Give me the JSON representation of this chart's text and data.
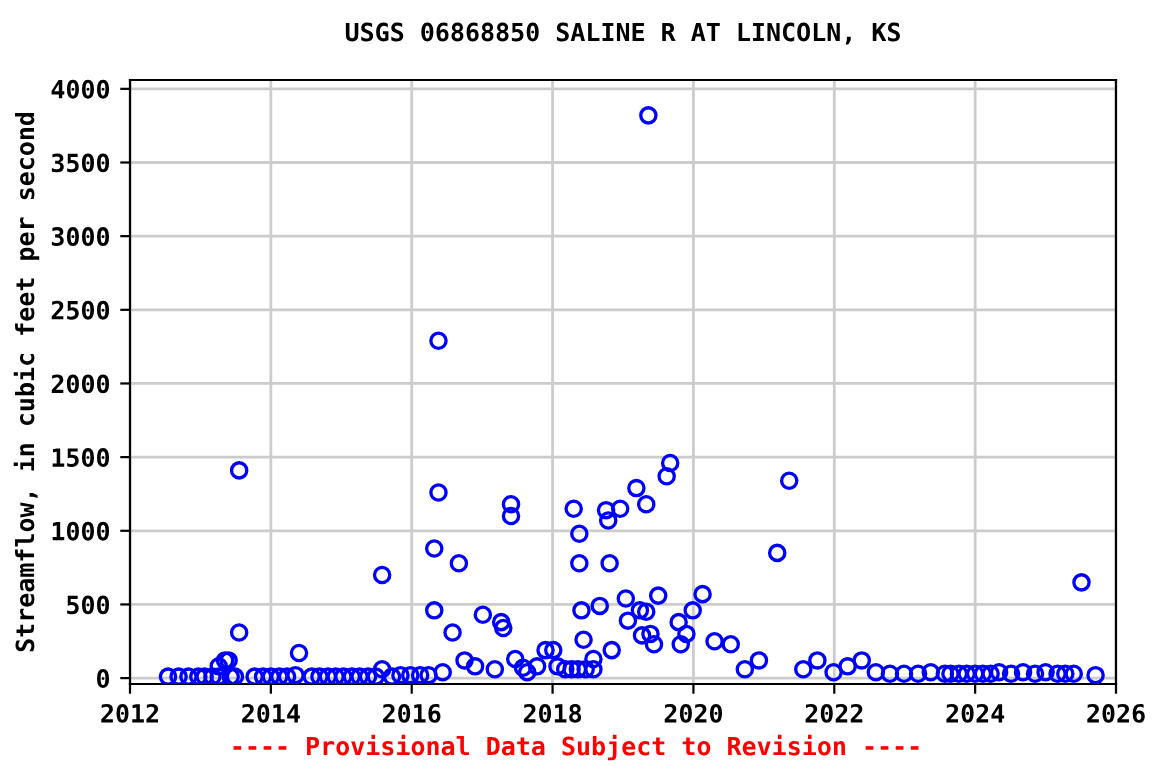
{
  "chart_data": {
    "type": "scatter",
    "title": "USGS 06868850 SALINE R AT LINCOLN, KS",
    "ylabel": "Streamflow, in cubic feet per second",
    "annotations": [
      "---- Provisional Data Subject to Revision ----"
    ],
    "series": [
      {
        "color": "#0000ff",
        "x": [
          2012.54,
          2012.69,
          2012.83,
          2012.97,
          2013.06,
          2013.17,
          2013.26,
          2013.35,
          2013.43,
          2013.49,
          2013.26,
          2013.4,
          2013.55,
          2013.55,
          2013.77,
          2013.89,
          2014.0,
          2014.12,
          2014.23,
          2014.35,
          2014.4,
          2014.58,
          2014.69,
          2014.81,
          2014.92,
          2015.03,
          2015.15,
          2015.26,
          2015.38,
          2015.49,
          2015.58,
          2015.58,
          2015.72,
          2015.84,
          2015.98,
          2016.12,
          2016.24,
          2016.32,
          2016.32,
          2016.38,
          2016.38,
          2016.44,
          2016.58,
          2016.67,
          2016.75,
          2016.9,
          2017.01,
          2017.18,
          2017.27,
          2017.3,
          2017.41,
          2017.41,
          2017.47,
          2017.58,
          2017.64,
          2017.78,
          2017.9,
          2018.01,
          2018.07,
          2018.18,
          2018.27,
          2018.36,
          2018.47,
          2018.58,
          2018.3,
          2018.38,
          2018.38,
          2018.41,
          2018.44,
          2018.58,
          2018.67,
          2018.84,
          2018.76,
          2018.79,
          2018.81,
          2018.96,
          2019.04,
          2019.07,
          2019.19,
          2019.24,
          2019.33,
          2019.33,
          2019.27,
          2019.39,
          2019.44,
          2019.36,
          2019.5,
          2019.62,
          2019.67,
          2019.79,
          2019.82,
          2019.9,
          2019.99,
          2020.13,
          2020.3,
          2020.53,
          2020.73,
          2020.93,
          2021.19,
          2021.36,
          2021.56,
          2021.76,
          2021.99,
          2022.19,
          2022.39,
          2022.59,
          2022.79,
          2022.99,
          2023.19,
          2023.37,
          2023.57,
          2023.65,
          2023.77,
          2023.88,
          2024.0,
          2024.11,
          2024.22,
          2024.34,
          2024.51,
          2024.68,
          2024.85,
          2025.0,
          2025.17,
          2025.28,
          2025.4,
          2025.51,
          2025.71
        ],
        "values": [
          10,
          10,
          10,
          10,
          10,
          10,
          80,
          120,
          10,
          10,
          10,
          120,
          310,
          1410,
          10,
          10,
          10,
          10,
          10,
          20,
          170,
          10,
          10,
          10,
          10,
          10,
          10,
          10,
          10,
          10,
          700,
          60,
          10,
          20,
          20,
          20,
          20,
          880,
          460,
          2290,
          1260,
          40,
          310,
          780,
          120,
          80,
          430,
          60,
          380,
          340,
          1180,
          1100,
          130,
          70,
          40,
          80,
          190,
          190,
          80,
          60,
          60,
          60,
          60,
          60,
          1150,
          980,
          780,
          460,
          260,
          130,
          490,
          190,
          1140,
          1070,
          780,
          1150,
          540,
          390,
          1290,
          460,
          450,
          1180,
          290,
          300,
          230,
          3820,
          560,
          1370,
          1460,
          380,
          230,
          300,
          460,
          570,
          250,
          230,
          60,
          120,
          850,
          1340,
          60,
          120,
          40,
          80,
          120,
          40,
          30,
          30,
          30,
          40,
          30,
          30,
          30,
          30,
          30,
          30,
          30,
          40,
          30,
          40,
          30,
          40,
          30,
          30,
          30,
          650,
          20
        ]
      }
    ],
    "marker": "circle",
    "grid": true,
    "legend": false,
    "xlim": [
      2012,
      2026
    ],
    "xticks": [
      2012,
      2014,
      2016,
      2018,
      2020,
      2022,
      2024,
      2026
    ],
    "ylim": [
      -40,
      4060
    ],
    "yticks": [
      0,
      500,
      1000,
      1500,
      2000,
      2500,
      3000,
      3500,
      4000
    ]
  }
}
